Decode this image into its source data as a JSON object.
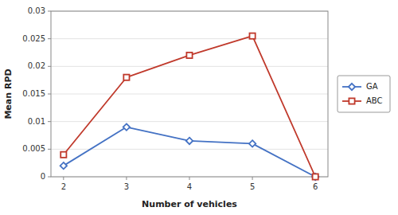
{
  "chart_data": {
    "type": "line",
    "x_label": "Number of vehicles",
    "y_label": "Mean RPD",
    "x": [
      2,
      3,
      4,
      5,
      6
    ],
    "series": [
      {
        "name": "GA",
        "color": "#4472c4",
        "marker": "diamond",
        "values": [
          0.002,
          0.009,
          0.0065,
          0.006,
          0.0
        ]
      },
      {
        "name": "ABC",
        "color": "#c0392b",
        "marker": "square",
        "values": [
          0.004,
          0.018,
          0.022,
          0.0255,
          0.0
        ]
      }
    ],
    "xlim": [
      1.8,
      6.2
    ],
    "ylim": [
      0,
      0.03
    ],
    "xticks": [
      2,
      3,
      4,
      5,
      6
    ],
    "yticks": [
      0,
      0.005,
      0.01,
      0.015,
      0.02,
      0.025,
      0.03
    ],
    "grid": true,
    "legend": "right"
  }
}
